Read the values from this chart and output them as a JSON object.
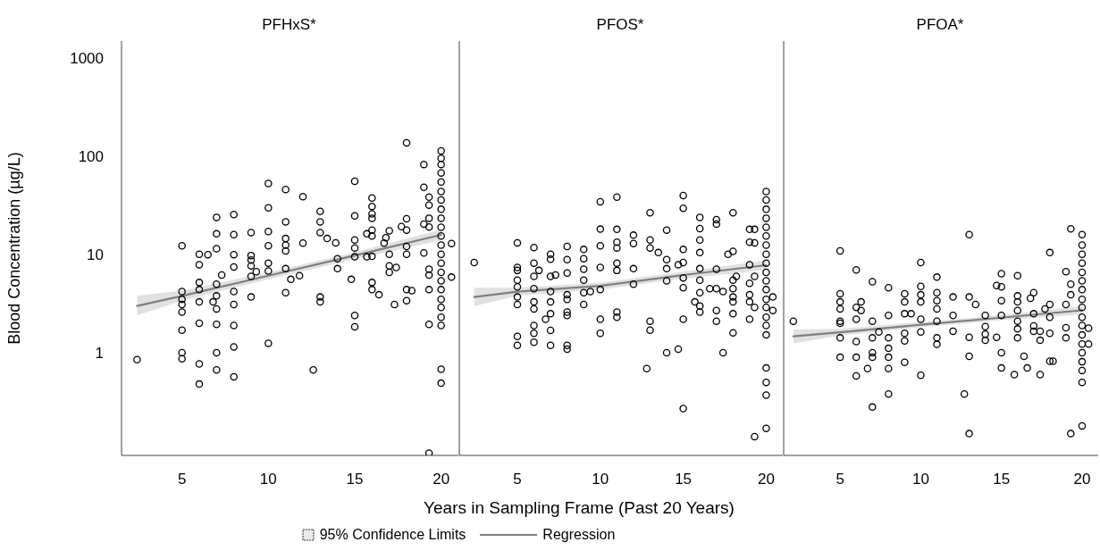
{
  "chart_data": [
    {
      "type": "scatter",
      "title": "PFHxS*",
      "ylabel": "Blood Concentration (µg/L)",
      "xlim": [
        1.5,
        21
      ],
      "xticks": [
        5,
        10,
        15,
        20
      ],
      "ylim": [
        0.09,
        1500
      ],
      "yticks": [
        1,
        10,
        100,
        1000
      ],
      "log": "y",
      "marker": "circle",
      "series": [
        {
          "color": "#000000",
          "x": [
            2.4,
            5,
            5,
            5,
            5,
            5,
            5,
            5,
            5,
            6,
            6,
            6,
            6,
            6,
            6,
            6,
            6,
            6.5,
            6.8,
            7,
            7,
            7,
            7,
            7,
            7,
            7,
            7,
            7,
            7.3,
            8,
            8,
            8,
            8,
            8,
            8,
            8,
            8,
            8,
            9,
            9,
            9,
            9,
            9,
            9,
            9.3,
            10,
            10,
            10,
            10,
            10,
            10,
            10,
            11,
            11,
            11,
            11,
            11,
            11,
            11,
            11.3,
            11.8,
            12,
            12,
            12.6,
            13,
            13,
            13,
            13,
            13,
            13.4,
            13.9,
            14,
            14,
            14.8,
            15,
            15,
            15,
            15,
            15,
            15,
            15,
            15.7,
            15.7,
            16,
            16,
            16,
            16,
            16,
            16,
            16,
            16,
            16,
            16.4,
            16.7,
            16.8,
            17,
            17,
            17,
            17,
            17.3,
            17.4,
            17.7,
            18,
            18,
            18,
            18,
            18,
            18,
            18,
            18.3,
            19,
            19,
            19,
            19,
            19.3,
            19.3,
            19.3,
            19.3,
            19.3,
            19.3,
            19.3,
            19.3,
            19.3,
            20,
            20,
            20,
            20,
            20,
            20,
            20,
            20,
            20,
            20,
            20,
            20,
            20,
            20,
            20,
            20,
            20,
            20,
            20,
            20,
            20,
            20,
            20,
            20.6,
            20.6
          ],
          "values": [
            0.85,
            12.3,
            4.2,
            3.5,
            3.1,
            2.6,
            1.7,
            1.0,
            0.87,
            10.1,
            7.9,
            5.2,
            4.4,
            3.3,
            2.0,
            0.77,
            0.48,
            10,
            3.3,
            24,
            16.3,
            11.5,
            5.0,
            3.8,
            2.8,
            1.95,
            1.0,
            0.67,
            6.2,
            25.6,
            16,
            10,
            7.5,
            4.2,
            3.1,
            1.9,
            1.15,
            0.57,
            16.8,
            9.8,
            8.8,
            7.7,
            6.0,
            3.7,
            6.7,
            53,
            30,
            17.2,
            12.3,
            8.2,
            6.8,
            1.25,
            46,
            21.6,
            14.6,
            12.5,
            10.9,
            7.2,
            4.1,
            5.6,
            6.1,
            39,
            13.1,
            0.67,
            27.6,
            21.6,
            16.8,
            3.7,
            3.3,
            14.6,
            13.2,
            9.1,
            7.2,
            5.6,
            56,
            24.8,
            14.1,
            11.7,
            9.5,
            2.4,
            1.84,
            16.3,
            9.5,
            37.7,
            31,
            26,
            23.5,
            17.8,
            15.5,
            9.6,
            5.2,
            4.4,
            3.9,
            13.1,
            14.9,
            17.5,
            10.1,
            7.7,
            6.6,
            3.1,
            7.4,
            19.3,
            138,
            23.2,
            17.8,
            12.1,
            10.1,
            4.4,
            3.4,
            4.3,
            83,
            48.5,
            20.5,
            10.4,
            38.5,
            32,
            23.5,
            19.1,
            7.1,
            6.2,
            4.4,
            1.95,
            0.095,
            114,
            96,
            83,
            68,
            55,
            44,
            36,
            29,
            23.5,
            19,
            15.5,
            12.5,
            10.1,
            8.2,
            6.6,
            5.4,
            4.4,
            3.5,
            2.9,
            2.3,
            1.9,
            0.68,
            0.49,
            13.0,
            5.9
          ]
        },
        {
          "type": "line",
          "marker": "none",
          "color": "#7f7f7f",
          "x": [
            2.4,
            5,
            10,
            15,
            20
          ],
          "values": [
            3.0,
            3.8,
            6.1,
            9.8,
            15.9
          ],
          "lower": [
            2.4,
            3.4,
            5.6,
            9.0,
            14.0
          ],
          "upper": [
            3.8,
            4.3,
            6.6,
            10.6,
            18.0
          ]
        }
      ]
    },
    {
      "type": "scatter",
      "title": "PFOS*",
      "xlabel": "Years in Sampling Frame (Past 20 Years)",
      "xlim": [
        1.5,
        21
      ],
      "xticks": [
        5,
        10,
        15,
        20
      ],
      "ylim": [
        0.09,
        1500
      ],
      "yticks": [
        1,
        10,
        100,
        1000
      ],
      "log": "y",
      "marker": "circle",
      "tick_labels": "x",
      "legend": "bottom",
      "annotations": [
        "95% Confidence Limits"
      ],
      "series": [
        {
          "color": "#000000",
          "x": [
            2.4,
            5,
            5,
            5,
            5,
            5,
            5,
            5,
            5,
            5,
            6,
            6,
            6,
            6,
            6,
            6,
            6,
            6,
            6,
            6.3,
            6.7,
            7,
            7,
            7,
            7,
            7,
            7,
            7,
            7,
            7.3,
            8,
            8,
            8,
            8,
            8,
            8,
            8,
            8,
            8,
            9,
            9,
            9,
            9,
            9,
            9,
            9.4,
            10,
            10,
            10,
            10,
            10,
            10,
            10,
            11,
            11,
            11,
            11,
            11,
            11,
            11,
            11,
            12,
            12,
            12,
            12,
            12.8,
            13,
            13,
            13,
            13,
            13,
            13.5,
            14,
            14,
            14,
            14,
            14,
            14.7,
            14.7,
            15,
            15,
            15,
            15,
            15,
            15,
            15,
            15,
            15.7,
            16,
            16,
            16,
            16,
            16,
            16,
            16,
            16,
            16,
            16.6,
            17,
            17,
            17,
            17,
            17,
            17,
            17.4,
            17.4,
            17.7,
            18,
            18,
            18,
            18,
            18,
            18,
            18,
            18,
            18.2,
            19,
            19,
            19,
            19,
            19,
            19,
            19,
            19.3,
            19.3,
            19.3,
            19.3,
            19.3,
            20,
            20,
            20,
            20,
            20,
            20,
            20,
            20,
            20,
            20,
            20,
            20,
            20,
            20,
            20,
            20,
            20,
            20,
            20,
            20,
            20,
            20.4,
            20.4
          ],
          "values": [
            8.3,
            13.2,
            7.4,
            6.9,
            5.5,
            4.7,
            3.7,
            3.1,
            1.47,
            1.19,
            11.8,
            8.2,
            6.0,
            4.5,
            3.3,
            2.8,
            1.9,
            1.58,
            1.28,
            6.9,
            2.2,
            10.1,
            9.0,
            6.0,
            4.2,
            3.3,
            2.5,
            1.69,
            1.19,
            6.2,
            12.1,
            8.9,
            6.5,
            3.9,
            3.5,
            2.6,
            2.4,
            1.19,
            1.09,
            11.3,
            9.1,
            7.1,
            5.5,
            4.1,
            3.1,
            4.2,
            34.6,
            18.2,
            12.3,
            7.4,
            4.4,
            2.2,
            1.58,
            38.5,
            18.1,
            13.4,
            11.7,
            8.2,
            6.9,
            2.6,
            2.3,
            15.8,
            13.0,
            7.2,
            5.0,
            0.69,
            26.7,
            14.1,
            11.7,
            2.1,
            1.7,
            10.5,
            17.8,
            8.9,
            7.2,
            5.4,
            1.0,
            7.9,
            1.09,
            40,
            29.7,
            11.3,
            8.3,
            5.8,
            4.6,
            2.2,
            0.27,
            3.3,
            24,
            18.4,
            14.1,
            10.5,
            7.2,
            5.5,
            4.1,
            3.0,
            2.6,
            4.5,
            22.7,
            20.5,
            7.1,
            4.5,
            2.7,
            2.1,
            4.2,
            1.0,
            10.1,
            26.7,
            10.8,
            5.5,
            4.5,
            3.7,
            3.3,
            2.5,
            1.6,
            6.0,
            18.1,
            13.4,
            7.9,
            5.1,
            3.9,
            3.3,
            2.2,
            18.1,
            13.2,
            6.0,
            2.9,
            0.14,
            44,
            36,
            29,
            23.5,
            19,
            15.5,
            12.5,
            10.1,
            8.2,
            6.6,
            5.4,
            4.4,
            3.5,
            2.9,
            2.3,
            1.9,
            1.52,
            0.7,
            0.5,
            0.37,
            0.17,
            3.7,
            2.7
          ]
        },
        {
          "type": "line",
          "marker": "none",
          "name": "Regression",
          "color": "#7f7f7f",
          "x": [
            2.4,
            5,
            10,
            15,
            20
          ],
          "values": [
            3.7,
            4.2,
            4.8,
            6.2,
            7.8
          ],
          "lower": [
            3.0,
            3.8,
            4.4,
            5.7,
            7.0
          ],
          "upper": [
            4.6,
            4.6,
            5.2,
            6.7,
            8.7
          ]
        }
      ]
    },
    {
      "type": "scatter",
      "title": "PFOA*",
      "xlim": [
        1.5,
        21
      ],
      "xticks": [
        5,
        10,
        15,
        20
      ],
      "ylim": [
        0.09,
        1500
      ],
      "yticks": [
        1,
        10,
        100,
        1000
      ],
      "log": "y",
      "marker": "circle",
      "tick_labels": "x",
      "series": [
        {
          "color": "#000000",
          "x": [
            2.1,
            5,
            5,
            5,
            5,
            5,
            5,
            5,
            5,
            6,
            6,
            6,
            6,
            6,
            6,
            6.3,
            6.3,
            6.7,
            7,
            7,
            7,
            7,
            7,
            7,
            7.4,
            8,
            8,
            8,
            8,
            8,
            8,
            8,
            9,
            9,
            9,
            9,
            9,
            9,
            9.4,
            10,
            10,
            10,
            10,
            10,
            10,
            10,
            11,
            11,
            11,
            11,
            11,
            11,
            11,
            12,
            12,
            12,
            12.7,
            13,
            13,
            13,
            13,
            13,
            13.4,
            14,
            14,
            14,
            14,
            14.7,
            14.7,
            15,
            15,
            15,
            15,
            15,
            15,
            15.8,
            16,
            16,
            16,
            16,
            16,
            16,
            16,
            16.4,
            16.6,
            16.8,
            17,
            17,
            17,
            17,
            17.4,
            17.4,
            17.4,
            17.7,
            18,
            18,
            18,
            18,
            18,
            18.2,
            19,
            19,
            19,
            19,
            19.3,
            19.3,
            19.3,
            19.3,
            20,
            20,
            20,
            20,
            20,
            20,
            20,
            20,
            20,
            20,
            20,
            20,
            20,
            20,
            20,
            20,
            20,
            20,
            20.4,
            20.4
          ],
          "values": [
            2.1,
            10.9,
            4.0,
            3.3,
            2.8,
            2.1,
            2.0,
            1.42,
            0.9,
            7.0,
            2.9,
            2.2,
            1.3,
            0.9,
            0.58,
            3.3,
            2.7,
            0.69,
            5.3,
            2.1,
            1.42,
            1.0,
            0.9,
            0.28,
            1.63,
            4.6,
            2.4,
            1.42,
            1.11,
            0.9,
            0.69,
            0.38,
            4.0,
            3.3,
            2.5,
            1.58,
            1.32,
            0.8,
            2.5,
            8.3,
            4.75,
            3.9,
            3.3,
            2.2,
            1.63,
            0.59,
            5.9,
            4.1,
            3.4,
            2.8,
            2.1,
            1.42,
            1.22,
            3.7,
            2.4,
            1.66,
            0.38,
            16,
            3.7,
            1.44,
            0.92,
            0.15,
            3.1,
            2.4,
            1.85,
            1.55,
            1.34,
            4.85,
            1.44,
            6.4,
            4.7,
            3.4,
            2.4,
            1.0,
            0.7,
            0.6,
            6.1,
            3.8,
            3.3,
            2.7,
            2.1,
            1.75,
            1.42,
            0.92,
            0.7,
            3.6,
            4.1,
            2.5,
            1.88,
            1.66,
            0.6,
            1.34,
            1.66,
            2.8,
            10.5,
            3.1,
            2.3,
            1.58,
            0.82,
            0.82,
            6.7,
            3.1,
            1.8,
            1.42,
            18.3,
            5.0,
            3.9,
            0.15,
            16,
            12.5,
            10.1,
            8.2,
            6.6,
            5.4,
            4.4,
            3.5,
            2.9,
            2.3,
            1.9,
            1.52,
            1.23,
            1.0,
            0.81,
            0.66,
            0.5,
            0.18,
            1.78,
            1.23
          ]
        },
        {
          "type": "line",
          "marker": "none",
          "color": "#7f7f7f",
          "x": [
            2.1,
            5,
            10,
            15,
            20
          ],
          "values": [
            1.47,
            1.62,
            1.93,
            2.28,
            2.71
          ],
          "lower": [
            1.25,
            1.5,
            1.82,
            2.15,
            2.45
          ],
          "upper": [
            1.73,
            1.75,
            2.05,
            2.42,
            3.0
          ]
        }
      ]
    }
  ]
}
